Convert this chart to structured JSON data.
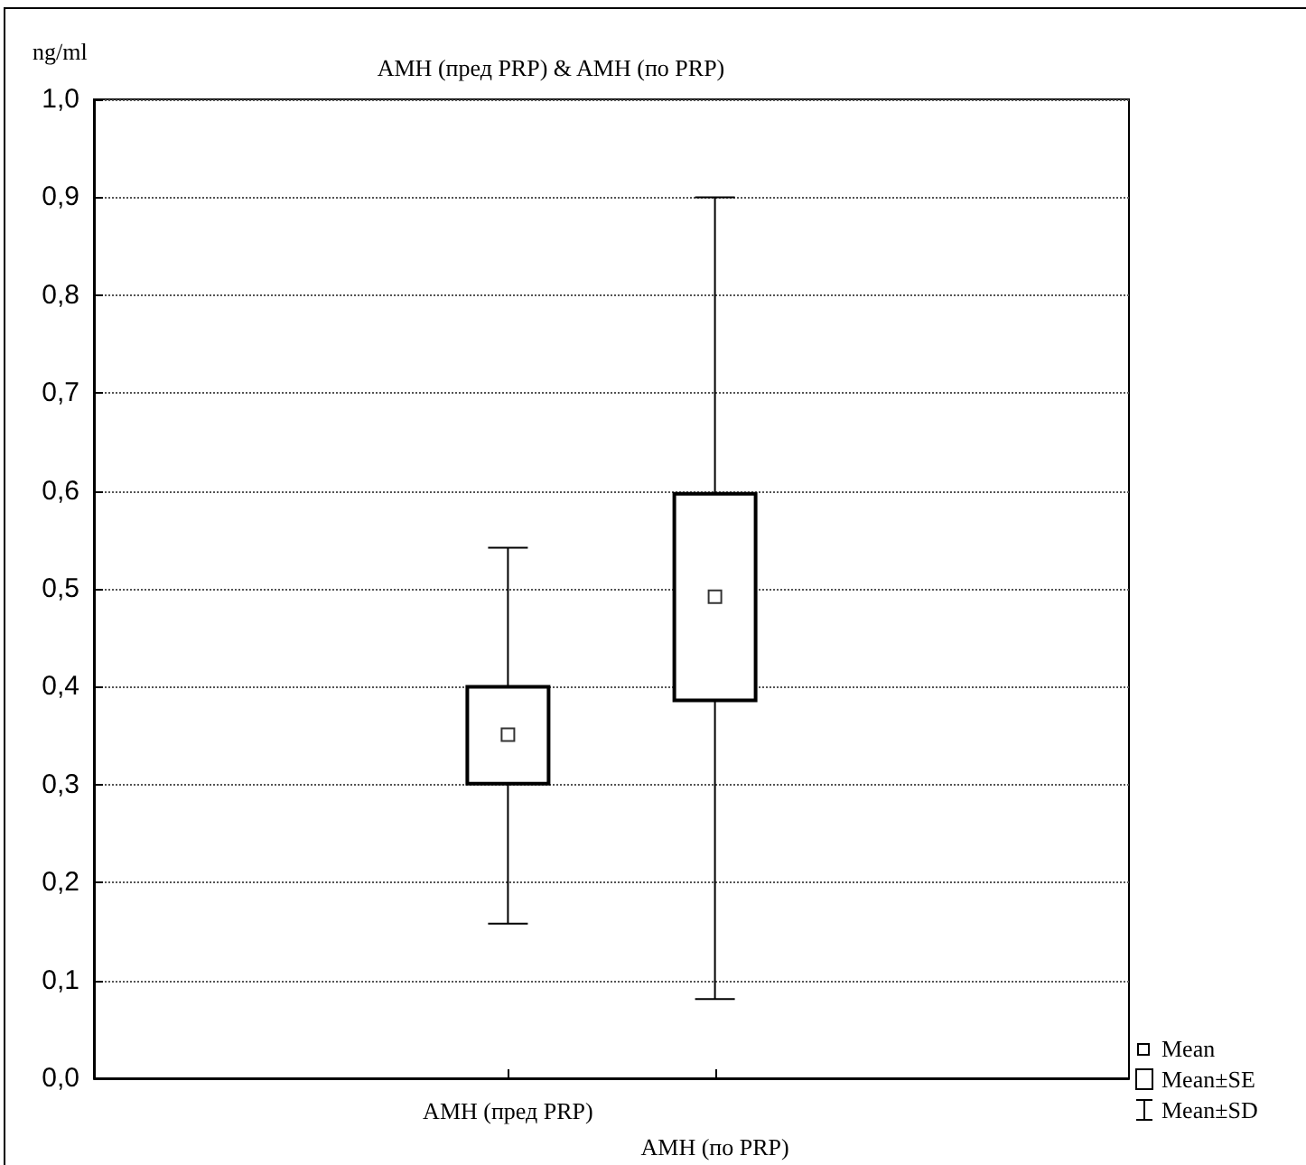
{
  "chart_data": {
    "type": "box",
    "title": "AMH (пред PRP) & AMH (по PRP)",
    "ylabel": "ng/ml",
    "categories": [
      "AMH (пред PRP)",
      "AMH (по PRP)"
    ],
    "boxes": [
      {
        "low": 0.158,
        "q1": 0.301,
        "median": 0.351,
        "q3": 0.4,
        "high": 0.542
      },
      {
        "low": 0.081,
        "q1": 0.386,
        "median": 0.492,
        "q3": 0.597,
        "high": 0.9
      }
    ],
    "ylim": [
      0,
      1
    ],
    "yticks": [
      {
        "value": 0,
        "label": "0,0"
      },
      {
        "value": 0.1,
        "label": "0,1"
      },
      {
        "value": 0.2,
        "label": "0,2"
      },
      {
        "value": 0.3,
        "label": "0,3"
      },
      {
        "value": 0.4,
        "label": "0,4"
      },
      {
        "value": 0.5,
        "label": "0,5"
      },
      {
        "value": 0.6,
        "label": "0,6"
      },
      {
        "value": 0.7,
        "label": "0,7"
      },
      {
        "value": 0.8,
        "label": "0,8"
      },
      {
        "value": 0.9,
        "label": "0,9"
      },
      {
        "value": 1,
        "label": "1,0"
      }
    ],
    "grid": "y",
    "marker": "square",
    "annotations": [
      "Mean",
      "Mean±SE",
      "Mean±SD"
    ]
  }
}
